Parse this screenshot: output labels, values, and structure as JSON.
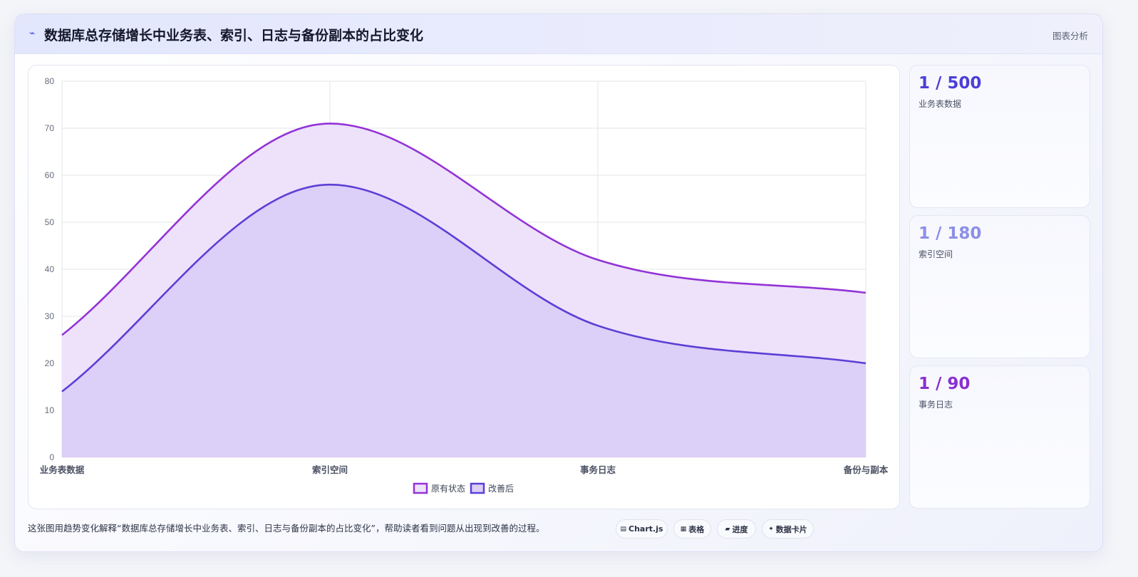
{
  "header": {
    "icon": "lightning-icon",
    "title": "数据库总存储增长中业务表、索引、日志与备份副本的占比变化",
    "tag": "图表分析"
  },
  "chart_data": {
    "type": "area",
    "categories": [
      "业务表数据",
      "索引空间",
      "事务日志",
      "备份与副本"
    ],
    "ylim": [
      0,
      80
    ],
    "yticks": [
      0,
      10,
      20,
      30,
      40,
      50,
      60,
      70,
      80
    ],
    "grid": true,
    "legend_position": "bottom",
    "series": [
      {
        "name": "原有状态",
        "values": [
          26,
          71,
          42,
          35
        ],
        "color": "#9333d6",
        "fill": "#ede2fa"
      },
      {
        "name": "改善后",
        "values": [
          14,
          58,
          28,
          20
        ],
        "color": "#5b3fd6",
        "fill": "#dccff8"
      }
    ]
  },
  "stats": [
    {
      "value": "1 / 500",
      "label": "业务表数据",
      "color": "#4c3fd6"
    },
    {
      "value": "1 / 180",
      "label": "索引空间",
      "color": "#8c8fe6"
    },
    {
      "value": "1 / 90",
      "label": "事务日志",
      "color": "#8a2fd0"
    }
  ],
  "footer": {
    "caption": "这张图用趋势变化解释“数据库总存储增长中业务表、索引、日志与备份副本的占比变化”，帮助读者看到问题从出现到改善的过程。",
    "chips": [
      {
        "icon": "chart-icon",
        "glyph": "▤",
        "label": "Chart.js"
      },
      {
        "icon": "table-icon",
        "glyph": "▦",
        "label": "表格"
      },
      {
        "icon": "progress-icon",
        "glyph": "▰",
        "label": "进度"
      },
      {
        "icon": "sparkle-icon",
        "glyph": "✦",
        "label": "数据卡片"
      }
    ]
  }
}
